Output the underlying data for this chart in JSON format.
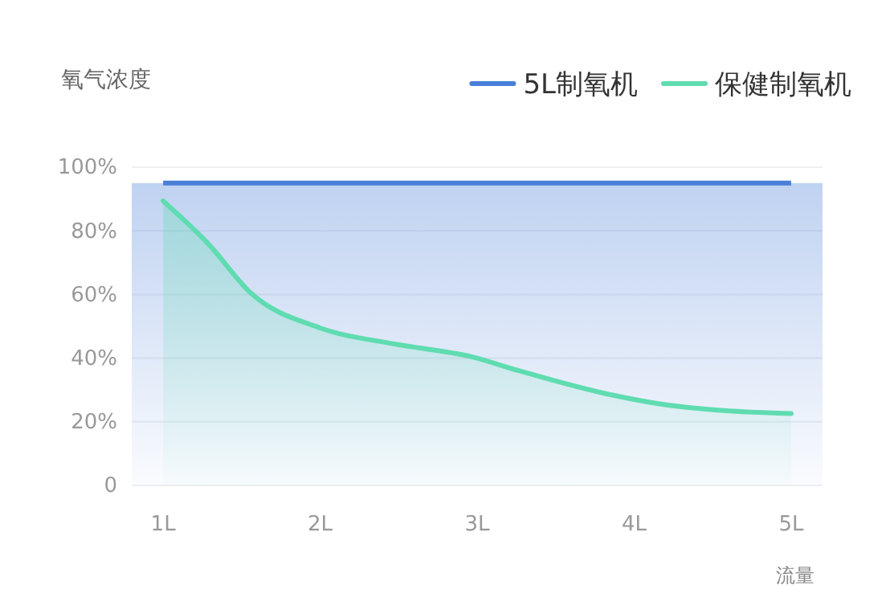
{
  "chart_data": {
    "type": "area",
    "ylabel": "氧气浓度",
    "xlabel": "流量",
    "xlim": [
      0.8,
      5.2
    ],
    "xticks": [
      {
        "value": 1,
        "label": "1L"
      },
      {
        "value": 2,
        "label": "2L"
      },
      {
        "value": 3,
        "label": "3L"
      },
      {
        "value": 4,
        "label": "4L"
      },
      {
        "value": 5,
        "label": "5L"
      }
    ],
    "ylim": [
      0,
      100
    ],
    "yticks": [
      {
        "value": 0,
        "label": "0"
      },
      {
        "value": 20,
        "label": "20%"
      },
      {
        "value": 40,
        "label": "40%"
      },
      {
        "value": 60,
        "label": "60%"
      },
      {
        "value": 80,
        "label": "80%"
      },
      {
        "value": 100,
        "label": "100%"
      }
    ],
    "grid": "y",
    "legend": "top right",
    "bands": [
      {
        "axis": "y",
        "from": 0,
        "to": 95,
        "color": "#4a7fd8"
      }
    ],
    "series": [
      {
        "name": "5L制氧机",
        "type": "line",
        "color": "#4a7fd8",
        "x": [
          1,
          5
        ],
        "values": [
          95,
          95
        ]
      },
      {
        "name": "保健制氧机",
        "color": "#5fdcb0",
        "x": [
          1,
          1.29,
          1.56,
          2.0,
          2.48,
          2.96,
          3.27,
          3.78,
          4.13,
          4.47,
          5
        ],
        "values": [
          89.4,
          75.8,
          60.4,
          49.5,
          44.4,
          40.5,
          36,
          29.3,
          25.9,
          23.9,
          22.6
        ]
      }
    ]
  }
}
